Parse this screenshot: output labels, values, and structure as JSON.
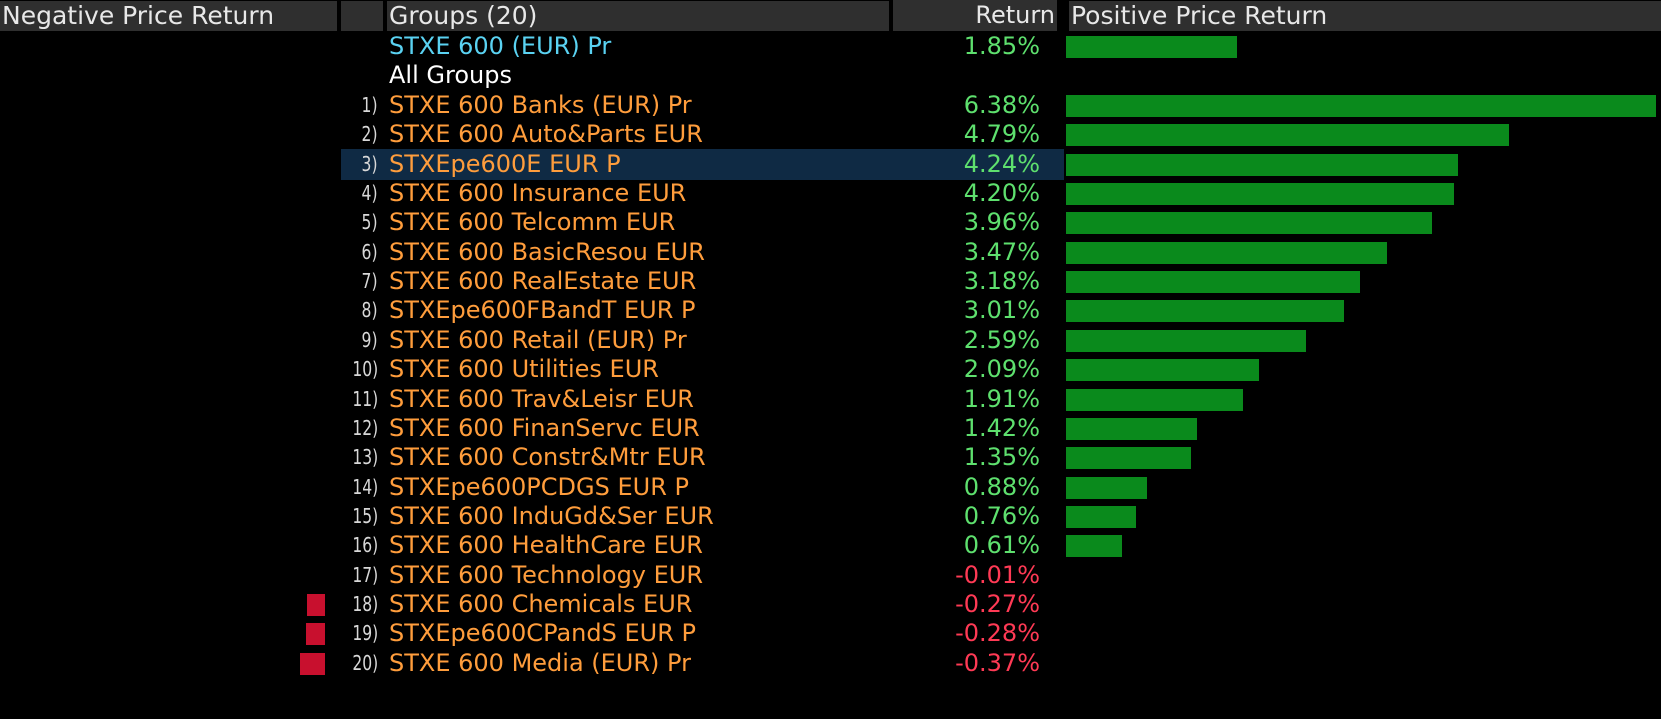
{
  "header": {
    "negative_label": "Negative Price Return",
    "groups_label": "Groups (20)",
    "return_label": "Return",
    "positive_label": "Positive Price Return"
  },
  "colors": {
    "positive_bar": "#0a8a1c",
    "negative_bar": "#c8102e",
    "group_text": "#ff9d3c",
    "index_text": "#5ad2f2",
    "positive_text": "#5ee06e",
    "negative_text": "#ff3a55",
    "highlight_row": "#0f2a44"
  },
  "index_row": {
    "name": "STXE 600 (EUR) Pr",
    "return": "1.85%",
    "value": 1.85
  },
  "subhead": "All Groups",
  "highlighted_rank": 3,
  "groups": [
    {
      "rank": "1)",
      "name": "STXE 600 Banks (EUR) Pr",
      "return": "6.38%",
      "value": 6.38
    },
    {
      "rank": "2)",
      "name": "STXE 600 Auto&Parts EUR",
      "return": "4.79%",
      "value": 4.79
    },
    {
      "rank": "3)",
      "name": "STXEpe600E EUR P",
      "return": "4.24%",
      "value": 4.24
    },
    {
      "rank": "4)",
      "name": "STXE 600 Insurance EUR",
      "return": "4.20%",
      "value": 4.2
    },
    {
      "rank": "5)",
      "name": "STXE 600 Telcomm EUR",
      "return": "3.96%",
      "value": 3.96
    },
    {
      "rank": "6)",
      "name": "STXE 600 BasicResou EUR",
      "return": "3.47%",
      "value": 3.47
    },
    {
      "rank": "7)",
      "name": "STXE 600 RealEstate EUR",
      "return": "3.18%",
      "value": 3.18
    },
    {
      "rank": "8)",
      "name": "STXEpe600FBandT EUR P",
      "return": "3.01%",
      "value": 3.01
    },
    {
      "rank": "9)",
      "name": "STXE 600 Retail (EUR) Pr",
      "return": "2.59%",
      "value": 2.59
    },
    {
      "rank": "10)",
      "name": "STXE 600 Utilities EUR",
      "return": "2.09%",
      "value": 2.09
    },
    {
      "rank": "11)",
      "name": "STXE 600 Trav&Leisr EUR",
      "return": "1.91%",
      "value": 1.91
    },
    {
      "rank": "12)",
      "name": "STXE 600 FinanServc EUR",
      "return": "1.42%",
      "value": 1.42
    },
    {
      "rank": "13)",
      "name": "STXE 600 Constr&Mtr EUR",
      "return": "1.35%",
      "value": 1.35
    },
    {
      "rank": "14)",
      "name": "STXEpe600PCDGS EUR P",
      "return": "0.88%",
      "value": 0.88
    },
    {
      "rank": "15)",
      "name": "STXE 600 InduGd&Ser EUR",
      "return": "0.76%",
      "value": 0.76
    },
    {
      "rank": "16)",
      "name": "STXE 600 HealthCare EUR",
      "return": "0.61%",
      "value": 0.61
    },
    {
      "rank": "17)",
      "name": "STXE 600 Technology EUR",
      "return": "-0.01%",
      "value": -0.01
    },
    {
      "rank": "18)",
      "name": "STXE 600 Chemicals EUR",
      "return": "-0.27%",
      "value": -0.27
    },
    {
      "rank": "19)",
      "name": "STXEpe600CPandS EUR P",
      "return": "-0.28%",
      "value": -0.28
    },
    {
      "rank": "20)",
      "name": "STXE 600 Media (EUR) Pr",
      "return": "-0.37%",
      "value": -0.37
    }
  ]
}
